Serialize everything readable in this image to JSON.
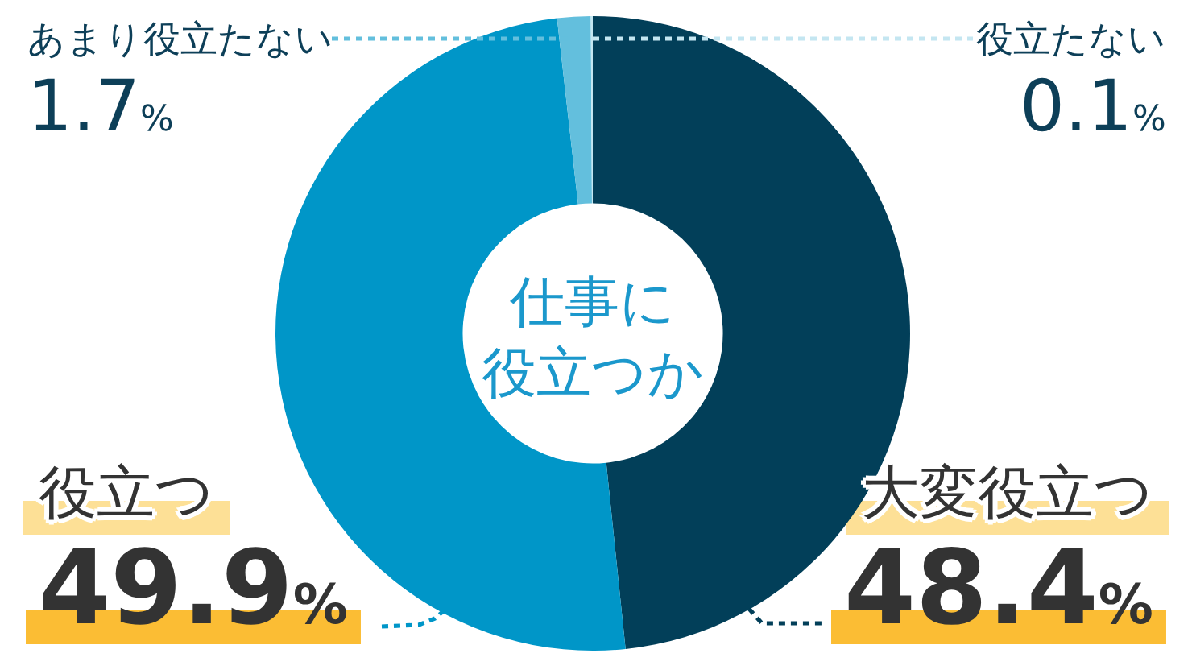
{
  "chart_data": {
    "type": "donut",
    "title": "仕事に役立つか",
    "categories": [
      "大変役立つ",
      "役立つ",
      "あまり役立たない",
      "役立たない"
    ],
    "values": [
      48.4,
      49.9,
      1.7,
      0.1
    ],
    "colors": [
      "#023f59",
      "#0096c8",
      "#63bfdd",
      "#c4e6f1"
    ],
    "value_labels": [
      "48.4%",
      "49.9%",
      "1.7%",
      "0.1%"
    ]
  }
}
